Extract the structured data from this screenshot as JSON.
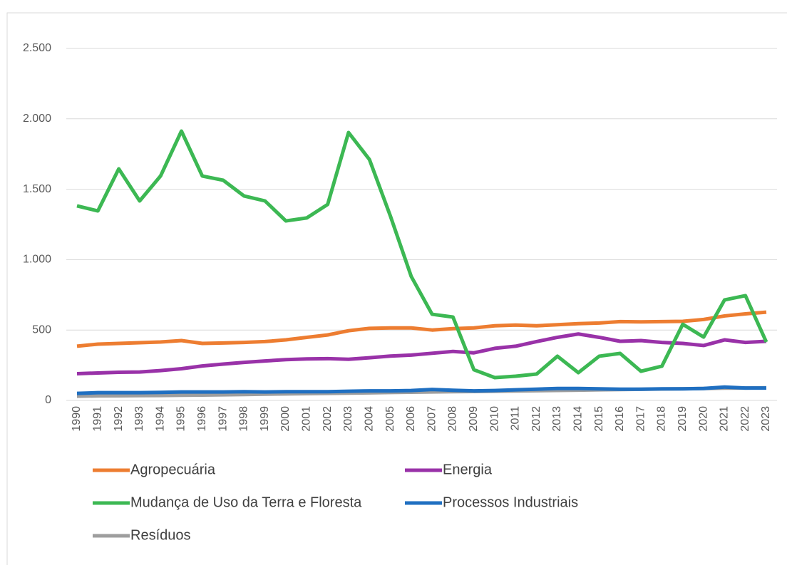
{
  "chart_data": {
    "type": "line",
    "x": [
      "1990",
      "1991",
      "1992",
      "1993",
      "1994",
      "1995",
      "1996",
      "1997",
      "1998",
      "1999",
      "2000",
      "2001",
      "2002",
      "2003",
      "2004",
      "2005",
      "2006",
      "2007",
      "2008",
      "2009",
      "2010",
      "2011",
      "2012",
      "2013",
      "2014",
      "2015",
      "2016",
      "2017",
      "2018",
      "2019",
      "2020",
      "2021",
      "2022",
      "2023"
    ],
    "series": [
      {
        "name": "Agropecuária",
        "color": "#ed7d31",
        "values": [
          385,
          400,
          405,
          410,
          415,
          425,
          405,
          408,
          412,
          418,
          430,
          448,
          465,
          495,
          512,
          515,
          515,
          500,
          510,
          515,
          530,
          535,
          530,
          538,
          545,
          550,
          560,
          558,
          560,
          562,
          575,
          600,
          615,
          627
        ]
      },
      {
        "name": "Energia",
        "color": "#9932a8",
        "values": [
          190,
          195,
          200,
          202,
          212,
          225,
          245,
          258,
          270,
          280,
          290,
          295,
          297,
          292,
          303,
          315,
          322,
          335,
          348,
          338,
          370,
          385,
          418,
          448,
          472,
          448,
          420,
          425,
          412,
          405,
          390,
          430,
          412,
          420
        ]
      },
      {
        "name": "Mudança de Uso da Terra e Floresta",
        "color": "#3cb853",
        "values": [
          1382,
          1346,
          1645,
          1417,
          1594,
          1913,
          1594,
          1564,
          1452,
          1417,
          1275,
          1296,
          1392,
          1903,
          1711,
          1311,
          881,
          612,
          592,
          218,
          162,
          172,
          187,
          314,
          197,
          314,
          334,
          207,
          243,
          541,
          450,
          714,
          744,
          415
        ]
      },
      {
        "name": "Processos Industriais",
        "color": "#1f6fc1",
        "values": [
          50,
          55,
          55,
          55,
          57,
          60,
          60,
          60,
          62,
          60,
          62,
          62,
          62,
          65,
          68,
          68,
          70,
          78,
          72,
          68,
          70,
          75,
          80,
          85,
          85,
          82,
          80,
          80,
          82,
          82,
          85,
          95,
          88,
          88
        ]
      },
      {
        "name": "Resíduos",
        "color": "#9e9e9e",
        "values": [
          30,
          32,
          33,
          34,
          35,
          37,
          38,
          40,
          42,
          44,
          46,
          48,
          50,
          52,
          54,
          56,
          58,
          60,
          62,
          63,
          65,
          67,
          69,
          71,
          73,
          75,
          77,
          79,
          81,
          83,
          85,
          87,
          88,
          90
        ]
      }
    ],
    "ylim": [
      0,
      2500
    ],
    "yticks": [
      0,
      {
        "value": 500,
        "label": "500"
      },
      {
        "value": 1000,
        "label": "1.000"
      },
      {
        "value": 1500,
        "label": "1.500"
      },
      {
        "value": 2000,
        "label": "2.000"
      },
      {
        "value": 2500,
        "label": "2.500"
      }
    ],
    "grid": true
  }
}
